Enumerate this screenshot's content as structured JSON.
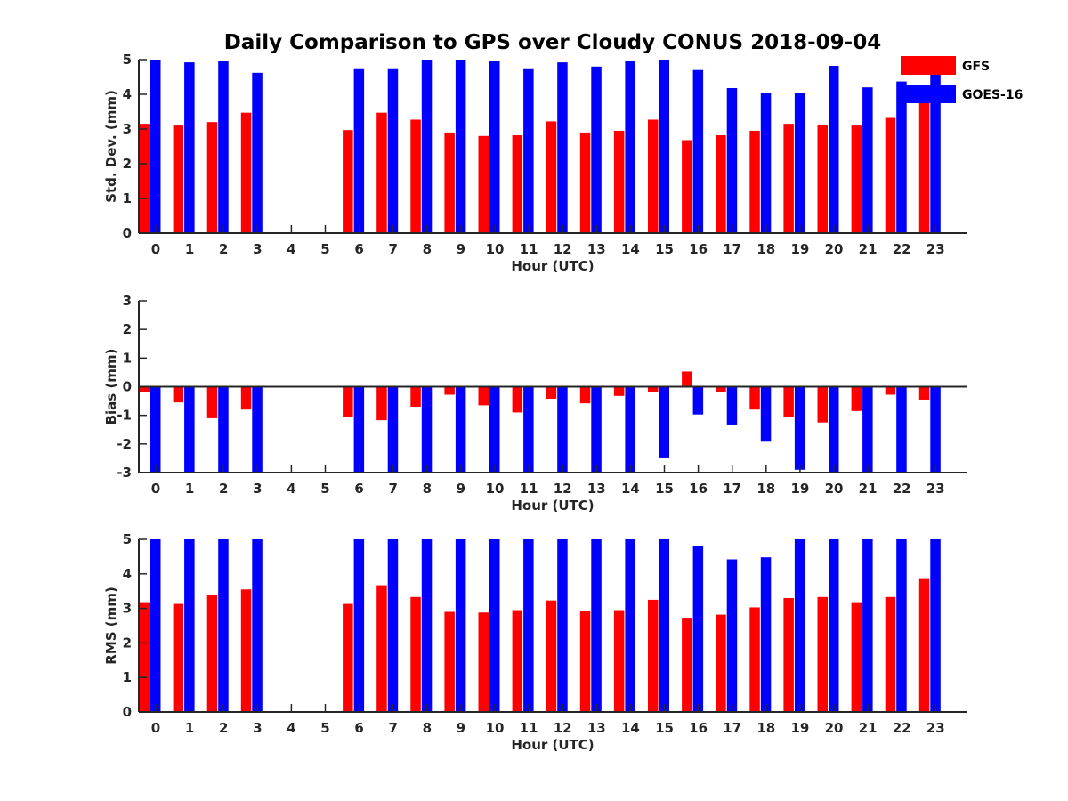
{
  "figure_title": "Daily Comparison to GPS over Cloudy CONUS 2018-09-04",
  "legend": [
    {
      "name": "GFS",
      "color": "#ff0000"
    },
    {
      "name": "GOES-16",
      "color": "#0000ff"
    }
  ],
  "colors": {
    "gfs": "#ff0000",
    "goes16": "#0000ff",
    "axis": "#262626"
  },
  "chart_data": [
    {
      "type": "bar",
      "title": "Daily Comparison to GPS over Cloudy CONUS 2018-09-04",
      "xlabel": "Hour (UTC)",
      "ylabel": "Std. Dev. (mm)",
      "ylim": [
        0,
        5
      ],
      "yticks": [
        0,
        1,
        2,
        3,
        4,
        5
      ],
      "categories": [
        "0",
        "1",
        "2",
        "3",
        "4",
        "5",
        "6",
        "7",
        "8",
        "9",
        "10",
        "11",
        "12",
        "13",
        "14",
        "15",
        "16",
        "17",
        "18",
        "19",
        "20",
        "21",
        "22",
        "23"
      ],
      "series": [
        {
          "name": "GFS",
          "values": [
            3.15,
            3.1,
            3.2,
            3.47,
            null,
            null,
            2.97,
            3.47,
            3.27,
            2.9,
            2.8,
            2.82,
            3.22,
            2.9,
            2.95,
            3.27,
            2.68,
            2.82,
            2.95,
            3.15,
            3.12,
            3.1,
            3.32,
            3.85
          ]
        },
        {
          "name": "GOES-16",
          "values": [
            5.0,
            4.92,
            4.95,
            4.62,
            null,
            null,
            4.75,
            4.75,
            5.0,
            5.0,
            4.97,
            4.75,
            4.92,
            4.8,
            4.95,
            5.0,
            4.7,
            4.18,
            4.03,
            4.05,
            4.82,
            4.2,
            4.37,
            4.6
          ]
        }
      ],
      "grid": false,
      "legend_position": "top-right"
    },
    {
      "type": "bar",
      "title": "",
      "xlabel": "Hour (UTC)",
      "ylabel": "Bias (mm)",
      "ylim": [
        -3,
        3
      ],
      "yticks": [
        -3,
        -2,
        -1,
        0,
        1,
        2,
        3
      ],
      "categories": [
        "0",
        "1",
        "2",
        "3",
        "4",
        "5",
        "6",
        "7",
        "8",
        "9",
        "10",
        "11",
        "12",
        "13",
        "14",
        "15",
        "16",
        "17",
        "18",
        "19",
        "20",
        "21",
        "22",
        "23"
      ],
      "series": [
        {
          "name": "GFS",
          "values": [
            -0.18,
            -0.55,
            -1.1,
            -0.8,
            null,
            null,
            -1.05,
            -1.17,
            -0.7,
            -0.28,
            -0.65,
            -0.9,
            -0.42,
            -0.58,
            -0.32,
            -0.18,
            0.53,
            -0.18,
            -0.8,
            -1.05,
            -1.25,
            -0.85,
            -0.28,
            -0.45
          ]
        },
        {
          "name": "GOES-16",
          "values": [
            -3.0,
            -3.0,
            -3.0,
            -3.0,
            null,
            null,
            -3.0,
            -3.0,
            -3.0,
            -3.0,
            -3.0,
            -3.0,
            -3.0,
            -3.0,
            -3.0,
            -2.5,
            -0.97,
            -1.32,
            -1.92,
            -2.9,
            -3.0,
            -3.0,
            -3.0,
            -3.0
          ]
        }
      ],
      "grid": false
    },
    {
      "type": "bar",
      "title": "",
      "xlabel": "Hour (UTC)",
      "ylabel": "RMS (mm)",
      "ylim": [
        0,
        5
      ],
      "yticks": [
        0,
        1,
        2,
        3,
        4,
        5
      ],
      "categories": [
        "0",
        "1",
        "2",
        "3",
        "4",
        "5",
        "6",
        "7",
        "8",
        "9",
        "10",
        "11",
        "12",
        "13",
        "14",
        "15",
        "16",
        "17",
        "18",
        "19",
        "20",
        "21",
        "22",
        "23"
      ],
      "series": [
        {
          "name": "GFS",
          "values": [
            3.18,
            3.13,
            3.4,
            3.55,
            null,
            null,
            3.13,
            3.67,
            3.33,
            2.9,
            2.88,
            2.95,
            3.23,
            2.92,
            2.95,
            3.25,
            2.73,
            2.82,
            3.03,
            3.3,
            3.33,
            3.18,
            3.33,
            3.85
          ]
        },
        {
          "name": "GOES-16",
          "values": [
            5.0,
            5.0,
            5.0,
            5.0,
            null,
            null,
            5.0,
            5.0,
            5.0,
            5.0,
            5.0,
            5.0,
            5.0,
            5.0,
            5.0,
            5.0,
            4.8,
            4.42,
            4.48,
            5.0,
            5.0,
            5.0,
            5.0,
            5.0
          ]
        }
      ],
      "grid": false
    }
  ]
}
